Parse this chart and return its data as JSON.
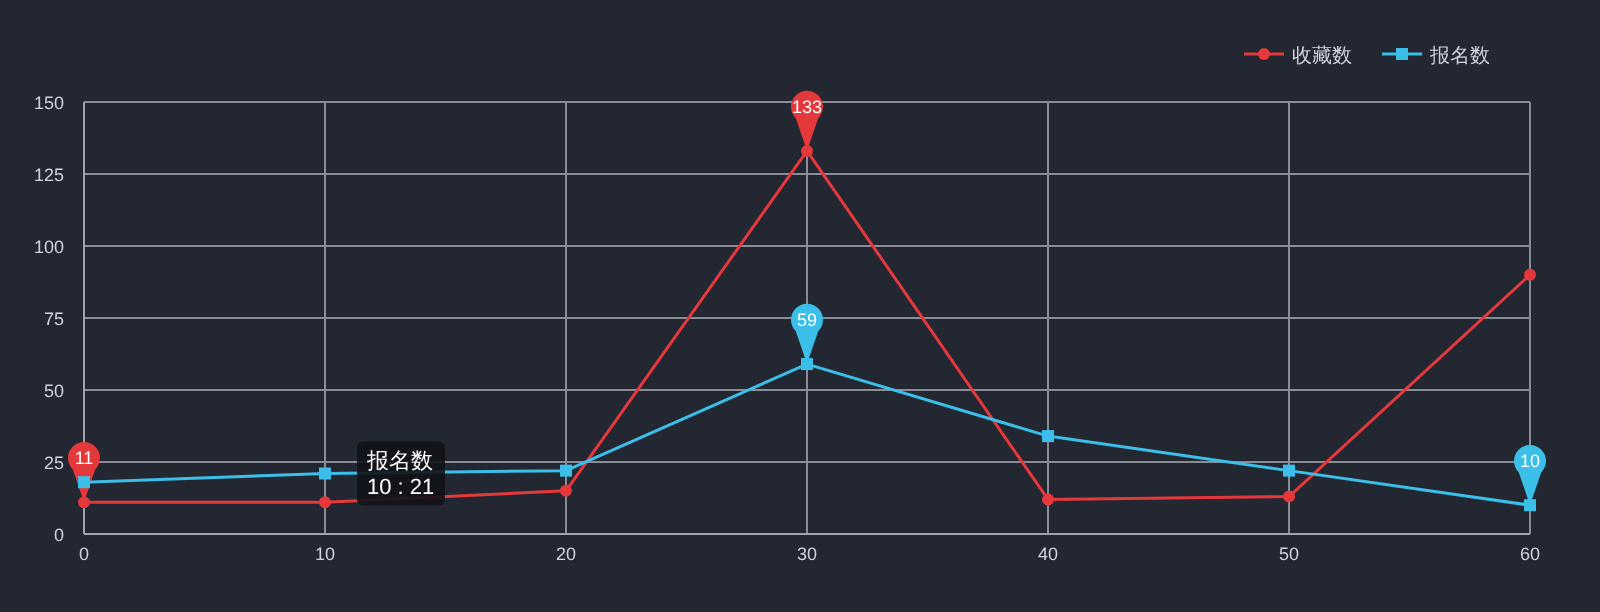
{
  "chart_data": {
    "type": "line",
    "x": [
      0,
      10,
      20,
      30,
      40,
      50,
      60
    ],
    "xlim": [
      0,
      60
    ],
    "xticks": [
      0,
      10,
      20,
      30,
      40,
      50,
      60
    ],
    "ylim": [
      0,
      150
    ],
    "yticks": [
      0,
      25,
      50,
      75,
      100,
      125,
      150
    ],
    "grid": true,
    "legend": "top right",
    "series": [
      {
        "name": "收藏数",
        "color": "#e5383b",
        "marker": "circle",
        "values": [
          11,
          11,
          15,
          133,
          12,
          13,
          90
        ]
      },
      {
        "name": "报名数",
        "color": "#3bbfe8",
        "marker": "square",
        "values": [
          18,
          21,
          22,
          59,
          34,
          22,
          10
        ]
      }
    ],
    "annotations": [
      {
        "text": "11",
        "x": 0,
        "y": 11
      },
      {
        "text": "133",
        "x": 30,
        "y": 133
      },
      {
        "text": "59",
        "x": 30,
        "y": 59
      },
      {
        "text": "10",
        "x": 60,
        "y": 10
      },
      {
        "text": "报名数\n10 : 21",
        "x": 10,
        "y": 21
      }
    ]
  }
}
